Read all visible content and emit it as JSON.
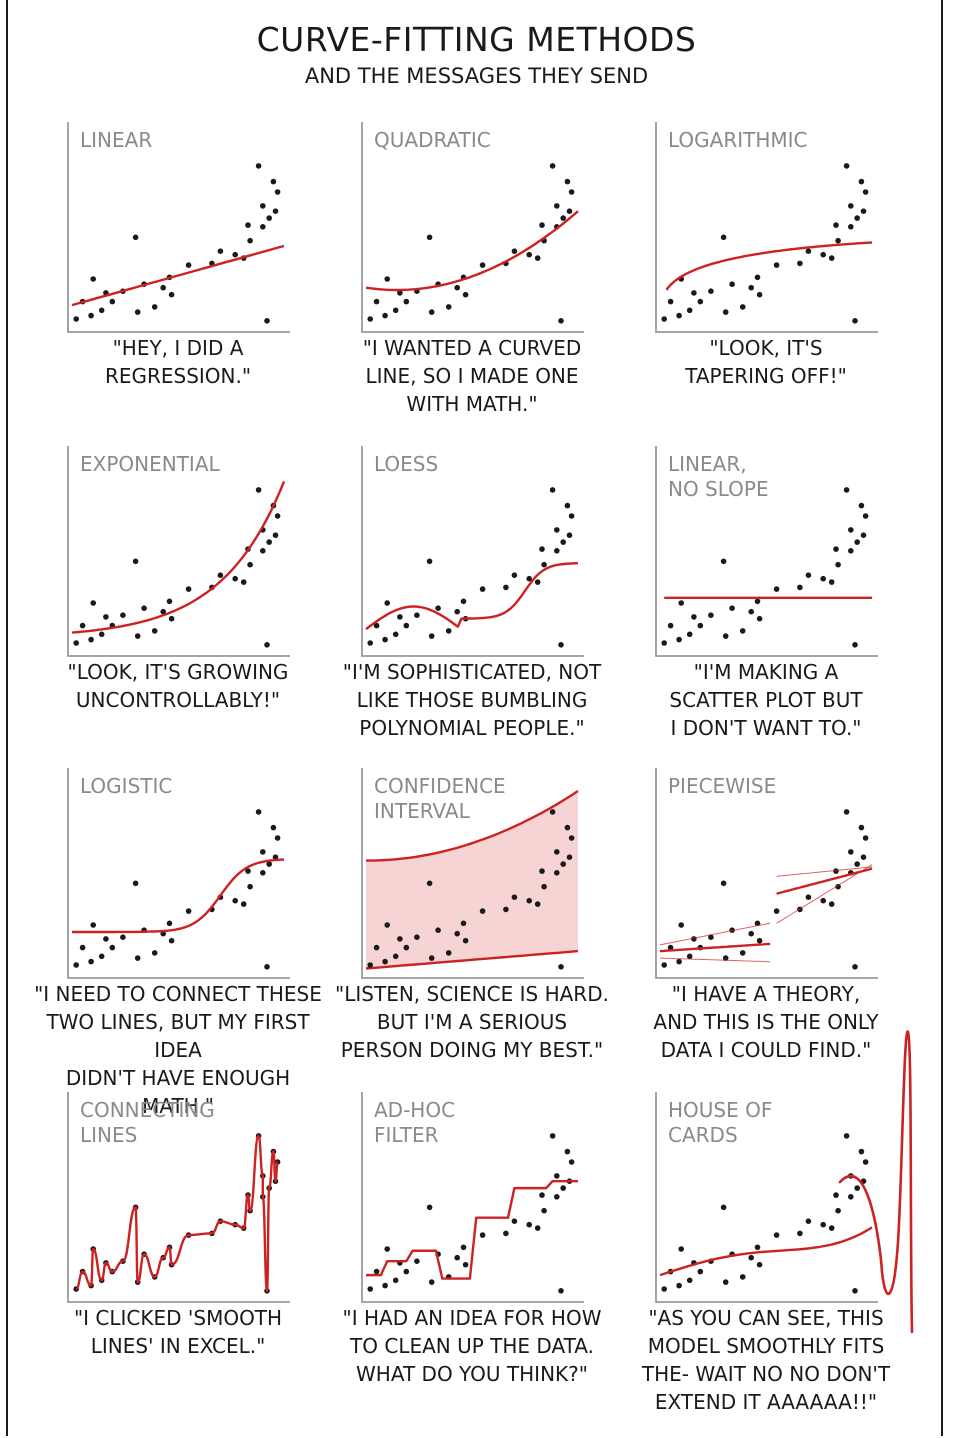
{
  "title": "CURVE-FITTING METHODS",
  "subtitle": "AND THE MESSAGES THEY SEND",
  "colors": {
    "ink": "#1a1a1a",
    "axis": "#9a9a9a",
    "fit": "#cc2222",
    "band": "#f7d4d4",
    "label": "#8a8a8a"
  },
  "chart_data": [
    {
      "type": "scatter",
      "panel": "LINEAR",
      "caption": "\"HEY, I DID A\nREGRESSION.\"",
      "fit": "linear"
    },
    {
      "type": "scatter",
      "panel": "QUADRATIC",
      "caption": "\"I WANTED A CURVED\nLINE, SO I MADE ONE\nWITH MATH.\"",
      "fit": "quadratic"
    },
    {
      "type": "scatter",
      "panel": "LOGARITHMIC",
      "caption": "\"LOOK, IT'S\nTAPERING OFF!\"",
      "fit": "logarithmic"
    },
    {
      "type": "scatter",
      "panel": "EXPONENTIAL",
      "caption": "\"LOOK, IT'S GROWING\nUNCONTROLLABLY!\"",
      "fit": "exponential"
    },
    {
      "type": "scatter",
      "panel": "LOESS",
      "caption": "\"I'M SOPHISTICATED, NOT\nLIKE THOSE BUMBLING\nPOLYNOMIAL PEOPLE.\"",
      "fit": "loess"
    },
    {
      "type": "scatter",
      "panel": "LINEAR,\nNO SLOPE",
      "caption": "\"I'M MAKING A\nSCATTER PLOT BUT\nI DON'T WANT TO.\"",
      "fit": "flat"
    },
    {
      "type": "scatter",
      "panel": "LOGISTIC",
      "caption": "\"I NEED TO CONNECT THESE\nTWO LINES, BUT MY FIRST IDEA\nDIDN'T HAVE ENOUGH MATH.\"",
      "fit": "logistic"
    },
    {
      "type": "scatter",
      "panel": "CONFIDENCE\nINTERVAL",
      "caption": "\"LISTEN, SCIENCE IS HARD.\nBUT I'M A SERIOUS\nPERSON DOING MY BEST.\"",
      "fit": "confidence"
    },
    {
      "type": "scatter",
      "panel": "PIECEWISE",
      "caption": "\"I HAVE A THEORY,\nAND THIS IS THE ONLY\nDATA I COULD FIND.\"",
      "fit": "piecewise"
    },
    {
      "type": "scatter",
      "panel": "CONNECTING\nLINES",
      "caption": "\"I CLICKED 'SMOOTH\nLINES' IN EXCEL.\"",
      "fit": "connecting"
    },
    {
      "type": "scatter",
      "panel": "AD-HOC\nFILTER",
      "caption": "\"I HAD AN IDEA FOR HOW\nTO CLEAN UP THE DATA.\nWHAT DO YOU THINK?\"",
      "fit": "adhoc"
    },
    {
      "type": "scatter",
      "panel": "HOUSE OF\nCARDS",
      "caption": "\"AS YOU CAN SEE, THIS\nMODEL SMOOTHLY FITS\nTHE- WAIT NO NO DON'T\nEXTEND IT AAAAAA!!\"",
      "fit": "houseofcards"
    }
  ],
  "points": [
    [
      0.88,
      0.92
    ],
    [
      0.3,
      0.51
    ],
    [
      0.95,
      0.83
    ],
    [
      0.97,
      0.77
    ],
    [
      0.9,
      0.69
    ],
    [
      0.93,
      0.62
    ],
    [
      0.9,
      0.57
    ],
    [
      0.84,
      0.49
    ],
    [
      0.77,
      0.41
    ],
    [
      0.81,
      0.39
    ],
    [
      0.7,
      0.43
    ],
    [
      0.66,
      0.36
    ],
    [
      0.55,
      0.35
    ],
    [
      0.46,
      0.28
    ],
    [
      0.47,
      0.18
    ],
    [
      0.43,
      0.22
    ],
    [
      0.34,
      0.24
    ],
    [
      0.39,
      0.11
    ],
    [
      0.31,
      0.08
    ],
    [
      0.24,
      0.2
    ],
    [
      0.19,
      0.14
    ],
    [
      0.16,
      0.19
    ],
    [
      0.14,
      0.09
    ],
    [
      0.1,
      0.27
    ],
    [
      0.09,
      0.06
    ],
    [
      0.05,
      0.14
    ],
    [
      0.02,
      0.04
    ],
    [
      0.92,
      0.03
    ],
    [
      0.96,
      0.66
    ],
    [
      0.83,
      0.58
    ]
  ]
}
